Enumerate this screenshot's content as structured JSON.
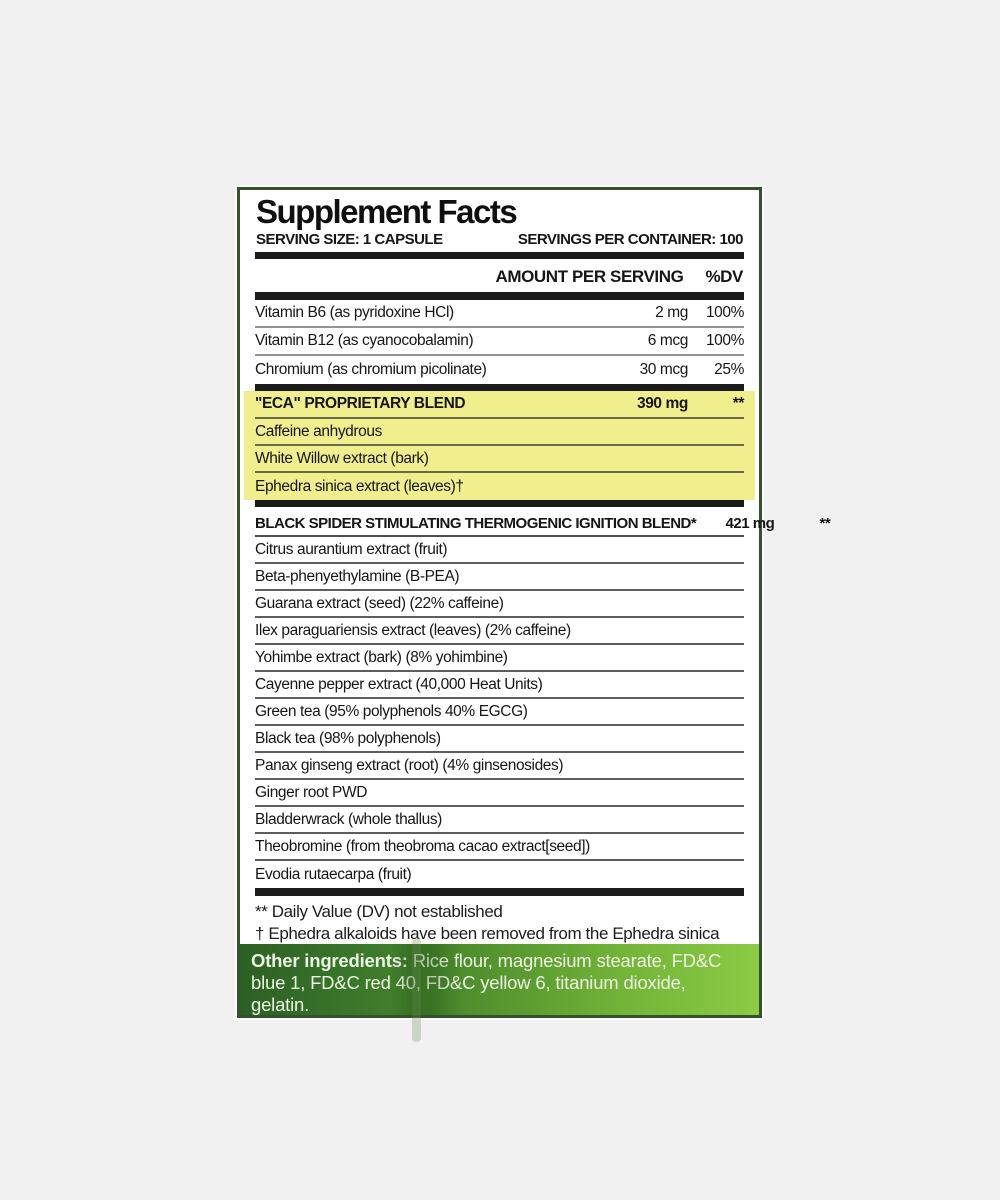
{
  "colors": {
    "page_bg": "#f1f1f2",
    "label_border_green": "#34522d",
    "highlight_yellow": "#f1ee8e",
    "footer_green_dark": "#2c5f25",
    "footer_green_light": "#8ccb45",
    "bar_black": "#1b1b1b"
  },
  "label": {
    "title": "Supplement Facts",
    "serving_size": "SERVING SIZE: 1 CAPSULE",
    "servings_per_container": "SERVINGS PER CONTAINER: 100",
    "column_header_amount": "AMOUNT PER SERVING",
    "column_header_dv": "%DV",
    "vitamins": [
      {
        "name": "Vitamin B6 (as pyridoxine HCl)",
        "amount": "2 mg",
        "dv": "100%"
      },
      {
        "name": "Vitamin B12 (as cyanocobalamin)",
        "amount": "6 mcg",
        "dv": "100%"
      },
      {
        "name": "Chromium (as chromium picolinate)",
        "amount": "30 mcg",
        "dv": "25%"
      }
    ],
    "blend1": {
      "name": "\"ECA\"  PROPRIETARY BLEND",
      "amount": "390 mg",
      "dv": "**",
      "ingredients": [
        "Caffeine anhydrous",
        "White Willow extract (bark)",
        "Ephedra sinica extract (leaves)†"
      ]
    },
    "blend2": {
      "name": "BLACK SPIDER STIMULATING THERMOGENIC IGNITION  BLEND*",
      "amount": "421 mg",
      "dv": "**",
      "ingredients": [
        "Citrus aurantium extract (fruit)",
        "Beta-phenyethylamine (B-PEA)",
        "Guarana extract (seed) (22% caffeine)",
        "Ilex paraguariensis extract (leaves) (2% caffeine)",
        "Yohimbe extract (bark) (8% yohimbine)",
        "Cayenne pepper extract (40,000 Heat Units)",
        "Green tea (95% polyphenols 40% EGCG)",
        "Black tea (98% polyphenols)",
        "Panax ginseng extract (root) (4% ginsenosides)",
        "Ginger root PWD",
        "Bladderwrack (whole thallus)",
        "Theobromine (from theobroma cacao extract[seed])",
        "Evodia rutaecarpa (fruit)"
      ]
    },
    "footnotes": [
      "** Daily Value (DV) not established",
      "† Ephedra alkaloids have been removed from the Ephedra sinica"
    ],
    "other_ingredients_label": "Other ingredients:",
    "other_ingredients_text": " Rice flour, magnesium stearate, FD&C blue 1, FD&C red 40, FD&C yellow 6, titanium dioxide, gelatin."
  }
}
